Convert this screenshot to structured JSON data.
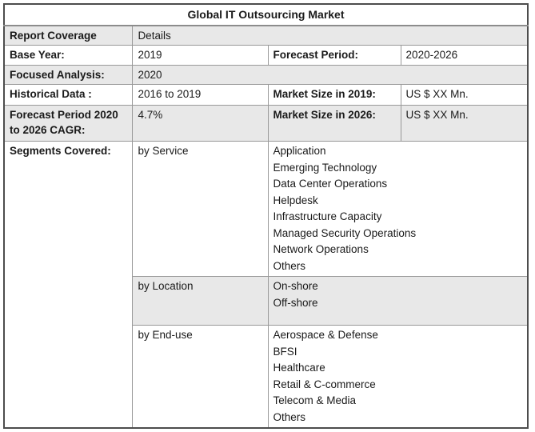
{
  "title": "Global IT Outsourcing Market",
  "colors": {
    "row_shade": "#e8e8e8",
    "inner_border": "#999999",
    "outer_border": "#4d4d4d",
    "text": "#1a1a1a"
  },
  "rows": {
    "report_coverage": {
      "label": "Report Coverage",
      "value": "Details"
    },
    "base_year": {
      "label": "Base Year:",
      "value": "2019"
    },
    "forecast_period": {
      "label": "Forecast Period:",
      "value": "2020-2026"
    },
    "focused_analysis": {
      "label": "Focused Analysis:",
      "value": "2020"
    },
    "historical_data": {
      "label": "Historical Data :",
      "value": "2016 to 2019"
    },
    "market_size_2019": {
      "label": "Market Size in 2019:",
      "value": "US $ XX Mn."
    },
    "cagr": {
      "label": "Forecast Period 2020 to 2026 CAGR:",
      "value": "4.7%"
    },
    "market_size_2026": {
      "label": "Market Size in 2026:",
      "value": "US $ XX Mn."
    },
    "segments": {
      "label": "Segments Covered:",
      "groups": [
        {
          "name": "by Service",
          "items": [
            "Application",
            "Emerging Technology",
            "Data Center Operations",
            "Helpdesk",
            "Infrastructure Capacity",
            "Managed Security Operations",
            "Network Operations",
            "Others"
          ]
        },
        {
          "name": "by Location",
          "items": [
            "On-shore",
            "Off-shore"
          ]
        },
        {
          "name": "by End-use",
          "items": [
            "Aerospace & Defense",
            "BFSI",
            "Healthcare",
            "Retail & C-commerce",
            "Telecom & Media",
            "Others"
          ]
        }
      ]
    }
  }
}
